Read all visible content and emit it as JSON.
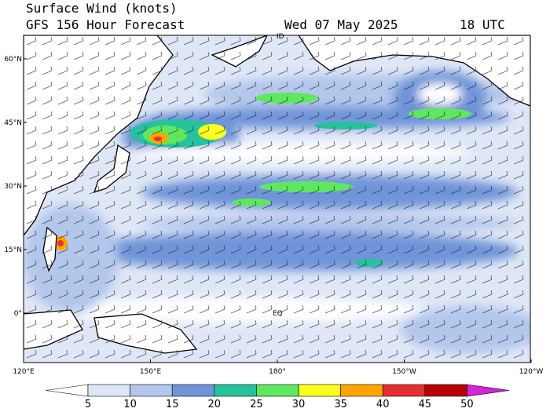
{
  "header": {
    "title": "Surface Wind (knots)",
    "subtitle": "GFS 156 Hour Forecast",
    "date": "Wed 07 May 2025",
    "time": "18 UTC"
  },
  "map": {
    "lat_labels": [
      "60°N",
      "45°N",
      "30°N",
      "15°N",
      "0°"
    ],
    "lon_labels": [
      "120°E",
      "150°E",
      "180°",
      "150°W",
      "120°W"
    ],
    "markers": [
      "ID",
      "EQ"
    ]
  },
  "colorbar": {
    "ticks": [
      5,
      10,
      15,
      20,
      25,
      30,
      35,
      40,
      45,
      50
    ],
    "colors": [
      "#ffffff",
      "#dfe7f7",
      "#b3c7ec",
      "#6f94d9",
      "#25c29c",
      "#5fe85f",
      "#ffff20",
      "#ffa500",
      "#e43030",
      "#b80000",
      "#d424d4"
    ]
  }
}
